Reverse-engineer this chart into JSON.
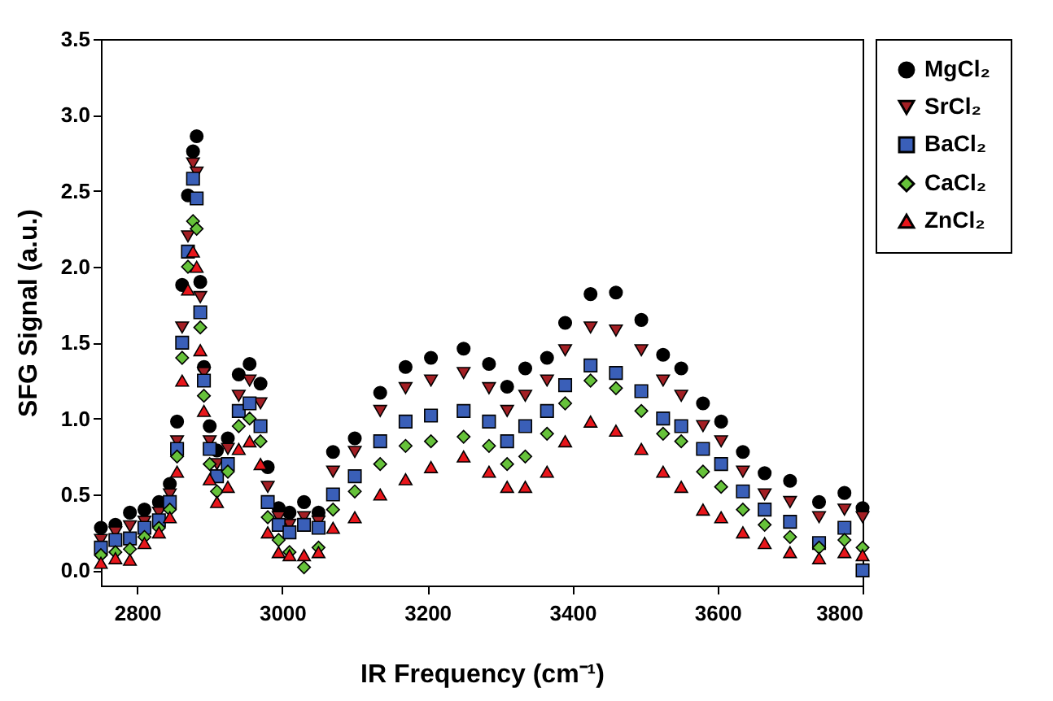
{
  "chart_data": {
    "type": "scatter",
    "xlabel": "IR Frequency (cm⁻¹)",
    "ylabel": "SFG Signal (a.u.)",
    "x": [
      2750,
      2770,
      2790,
      2810,
      2830,
      2845,
      2855,
      2862,
      2870,
      2877,
      2882,
      2887,
      2892,
      2900,
      2910,
      2925,
      2940,
      2955,
      2970,
      2980,
      2995,
      3010,
      3030,
      3050,
      3070,
      3100,
      3135,
      3170,
      3205,
      3250,
      3285,
      3310,
      3335,
      3365,
      3390,
      3425,
      3460,
      3495,
      3525,
      3550,
      3580,
      3605,
      3635,
      3665,
      3700,
      3740,
      3775,
      3800
    ],
    "series": [
      {
        "name": "MgCl₂",
        "color": "#000000",
        "marker": "circle",
        "values": [
          0.28,
          0.3,
          0.38,
          0.4,
          0.45,
          0.57,
          0.98,
          1.88,
          2.47,
          2.76,
          2.86,
          1.9,
          1.34,
          0.95,
          0.79,
          0.87,
          1.29,
          1.36,
          1.23,
          0.68,
          0.41,
          0.38,
          0.45,
          0.38,
          0.78,
          0.87,
          1.17,
          1.34,
          1.4,
          1.46,
          1.36,
          1.21,
          1.33,
          1.4,
          1.63,
          1.82,
          1.83,
          1.65,
          1.42,
          1.33,
          1.1,
          0.98,
          0.78,
          0.64,
          0.59,
          0.45,
          0.51,
          0.41
        ]
      },
      {
        "name": "SrCl₂",
        "color": "#a31f24",
        "marker": "triangle-down",
        "values": [
          0.2,
          0.25,
          0.29,
          0.32,
          0.38,
          0.5,
          0.85,
          1.6,
          2.2,
          2.68,
          2.62,
          1.8,
          1.3,
          0.85,
          0.7,
          0.8,
          1.15,
          1.25,
          1.1,
          0.55,
          0.35,
          0.3,
          0.35,
          0.32,
          0.65,
          0.78,
          1.05,
          1.2,
          1.25,
          1.3,
          1.2,
          1.05,
          1.15,
          1.25,
          1.45,
          1.6,
          1.58,
          1.45,
          1.25,
          1.15,
          0.95,
          0.85,
          0.65,
          0.5,
          0.45,
          0.35,
          0.4,
          0.35
        ]
      },
      {
        "name": "BaCl₂",
        "color": "#3a5fb8",
        "marker": "square",
        "values": [
          0.15,
          0.2,
          0.21,
          0.28,
          0.33,
          0.45,
          0.8,
          1.5,
          2.1,
          2.58,
          2.45,
          1.7,
          1.25,
          0.8,
          0.62,
          0.7,
          1.05,
          1.1,
          0.95,
          0.45,
          0.3,
          0.25,
          0.3,
          0.28,
          0.5,
          0.62,
          0.85,
          0.98,
          1.02,
          1.05,
          0.98,
          0.85,
          0.95,
          1.05,
          1.22,
          1.35,
          1.3,
          1.18,
          1.0,
          0.95,
          0.8,
          0.7,
          0.52,
          0.4,
          0.32,
          0.18,
          0.28,
          0.0
        ]
      },
      {
        "name": "CaCl₂",
        "color": "#66c23a",
        "marker": "diamond",
        "values": [
          0.1,
          0.12,
          0.14,
          0.22,
          0.28,
          0.4,
          0.75,
          1.4,
          2.0,
          2.3,
          2.25,
          1.6,
          1.15,
          0.7,
          0.52,
          0.65,
          0.95,
          1.0,
          0.85,
          0.35,
          0.2,
          0.12,
          0.02,
          0.15,
          0.4,
          0.52,
          0.7,
          0.82,
          0.85,
          0.88,
          0.82,
          0.7,
          0.75,
          0.9,
          1.1,
          1.25,
          1.2,
          1.05,
          0.9,
          0.85,
          0.65,
          0.55,
          0.4,
          0.3,
          0.22,
          0.15,
          0.2,
          0.15
        ]
      },
      {
        "name": "ZnCl₂",
        "color": "#e8161b",
        "marker": "triangle",
        "values": [
          0.05,
          0.08,
          0.07,
          0.18,
          0.25,
          0.35,
          0.65,
          1.25,
          1.85,
          2.1,
          2.0,
          1.45,
          1.05,
          0.6,
          0.45,
          0.55,
          0.8,
          0.85,
          0.7,
          0.25,
          0.12,
          0.1,
          0.1,
          0.12,
          0.28,
          0.35,
          0.5,
          0.6,
          0.68,
          0.75,
          0.65,
          0.55,
          0.55,
          0.65,
          0.85,
          0.98,
          0.92,
          0.8,
          0.65,
          0.55,
          0.4,
          0.35,
          0.25,
          0.18,
          0.12,
          0.08,
          0.12,
          0.1
        ]
      }
    ],
    "xlim": [
      2750,
      3800
    ],
    "xticks": [
      2800,
      3000,
      3200,
      3400,
      3600,
      3800
    ],
    "ylim": [
      -0.1,
      3.5
    ],
    "yticks": [
      {
        "value": 0,
        "label": "0.0"
      },
      {
        "value": 0.5,
        "label": "0.5"
      },
      {
        "value": 1,
        "label": "1.0"
      },
      {
        "value": 1.5,
        "label": "1.5"
      },
      {
        "value": 2,
        "label": "2.0"
      },
      {
        "value": 2.5,
        "label": "2.5"
      },
      {
        "value": 3,
        "label": "3.0"
      },
      {
        "value": 3.5,
        "label": "3.5"
      }
    ],
    "grid": false,
    "legend": "top right"
  }
}
